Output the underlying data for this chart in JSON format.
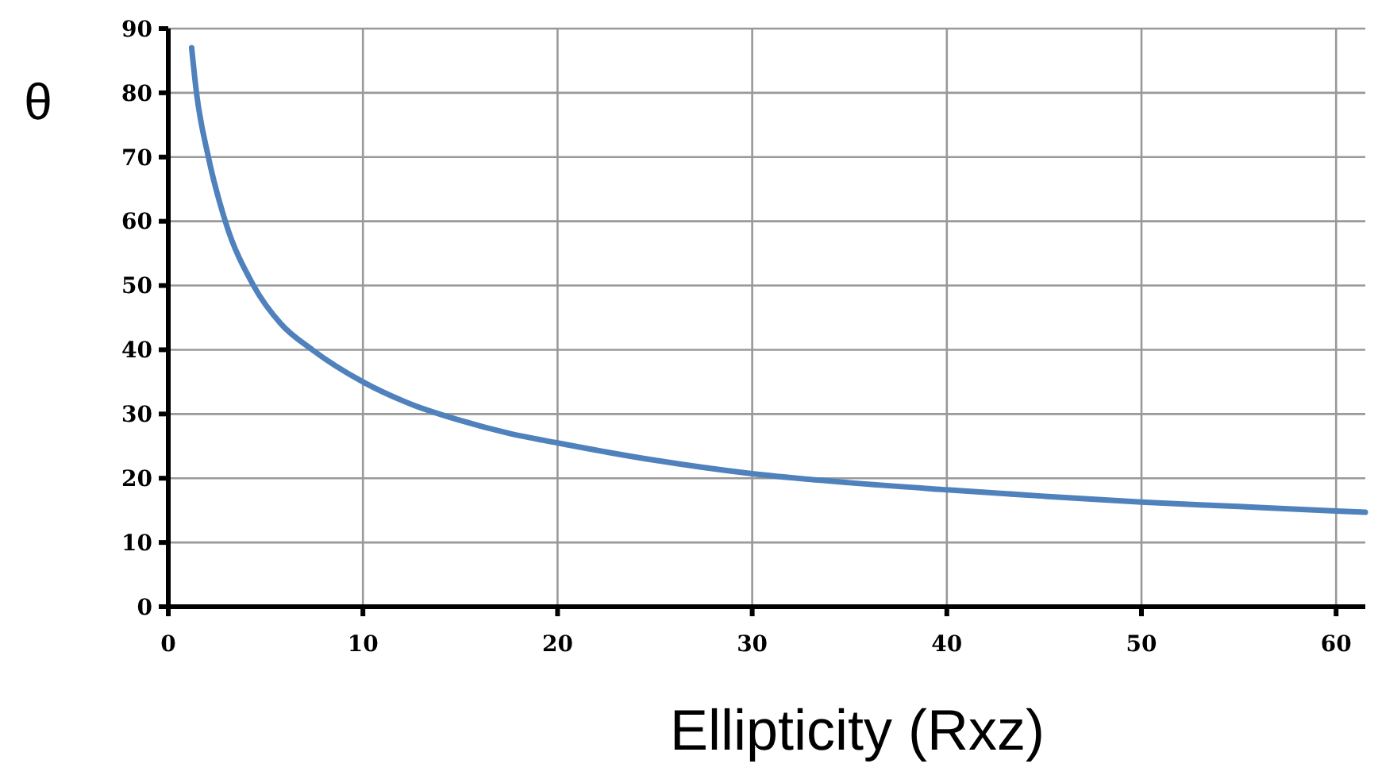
{
  "chart_data": {
    "type": "line",
    "xlabel": "Ellipticity (Rxz)",
    "ylabel": "θ",
    "xlim": [
      0,
      61.5
    ],
    "ylim": [
      0,
      90
    ],
    "xticks": [
      0,
      10,
      20,
      30,
      40,
      50,
      60
    ],
    "yticks": [
      0,
      10,
      20,
      30,
      40,
      50,
      60,
      70,
      80,
      90
    ],
    "grid": true,
    "marker": "none",
    "line_style": "solid",
    "series": [
      {
        "color": "#4f81bd",
        "x": [
          1.2,
          1.45,
          2.06,
          2.93,
          4.38,
          5.8,
          7.4,
          10,
          12.5,
          15,
          17.5,
          20,
          25,
          30,
          35,
          40,
          45,
          50,
          55,
          60,
          61.5
        ],
        "values": [
          87,
          80,
          70,
          60,
          50,
          44,
          40,
          35,
          31.5,
          29,
          27,
          25.5,
          22.8,
          20.7,
          19.3,
          18.2,
          17.2,
          16.3,
          15.6,
          14.9,
          14.7
        ]
      }
    ]
  }
}
